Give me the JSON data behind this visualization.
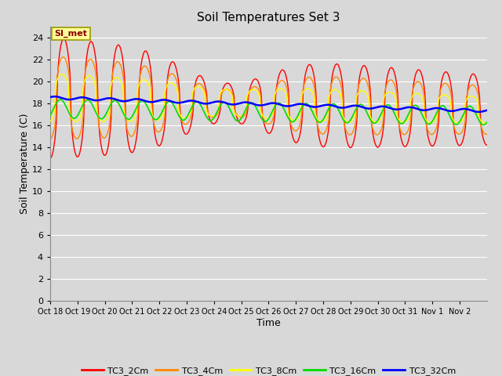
{
  "title": "Soil Temperatures Set 3",
  "xlabel": "Time",
  "ylabel": "Soil Temperature (C)",
  "ylim": [
    0,
    25
  ],
  "yticks": [
    0,
    2,
    4,
    6,
    8,
    10,
    12,
    14,
    16,
    18,
    20,
    22,
    24
  ],
  "background_color": "#d8d8d8",
  "plot_bg_color": "#d8d8d8",
  "grid_color": "#ffffff",
  "series_colors": {
    "TC3_2Cm": "#ff0000",
    "TC3_4Cm": "#ff8800",
    "TC3_8Cm": "#ffff00",
    "TC3_16Cm": "#00dd00",
    "TC3_32Cm": "#0000ff"
  },
  "annotation_text": "SI_met",
  "annotation_box_color": "#ffff99",
  "annotation_border_color": "#999900",
  "tick_labels": [
    "Oct 18",
    "Oct 19",
    "Oct 20",
    "Oct 21",
    "Oct 22",
    "Oct 23",
    "Oct 24",
    "Oct 25",
    "Oct 26",
    "Oct 27",
    "Oct 28",
    "Oct 29",
    "Oct 30",
    "Oct 31",
    "Nov 1",
    "Nov 2"
  ],
  "n_days": 16
}
